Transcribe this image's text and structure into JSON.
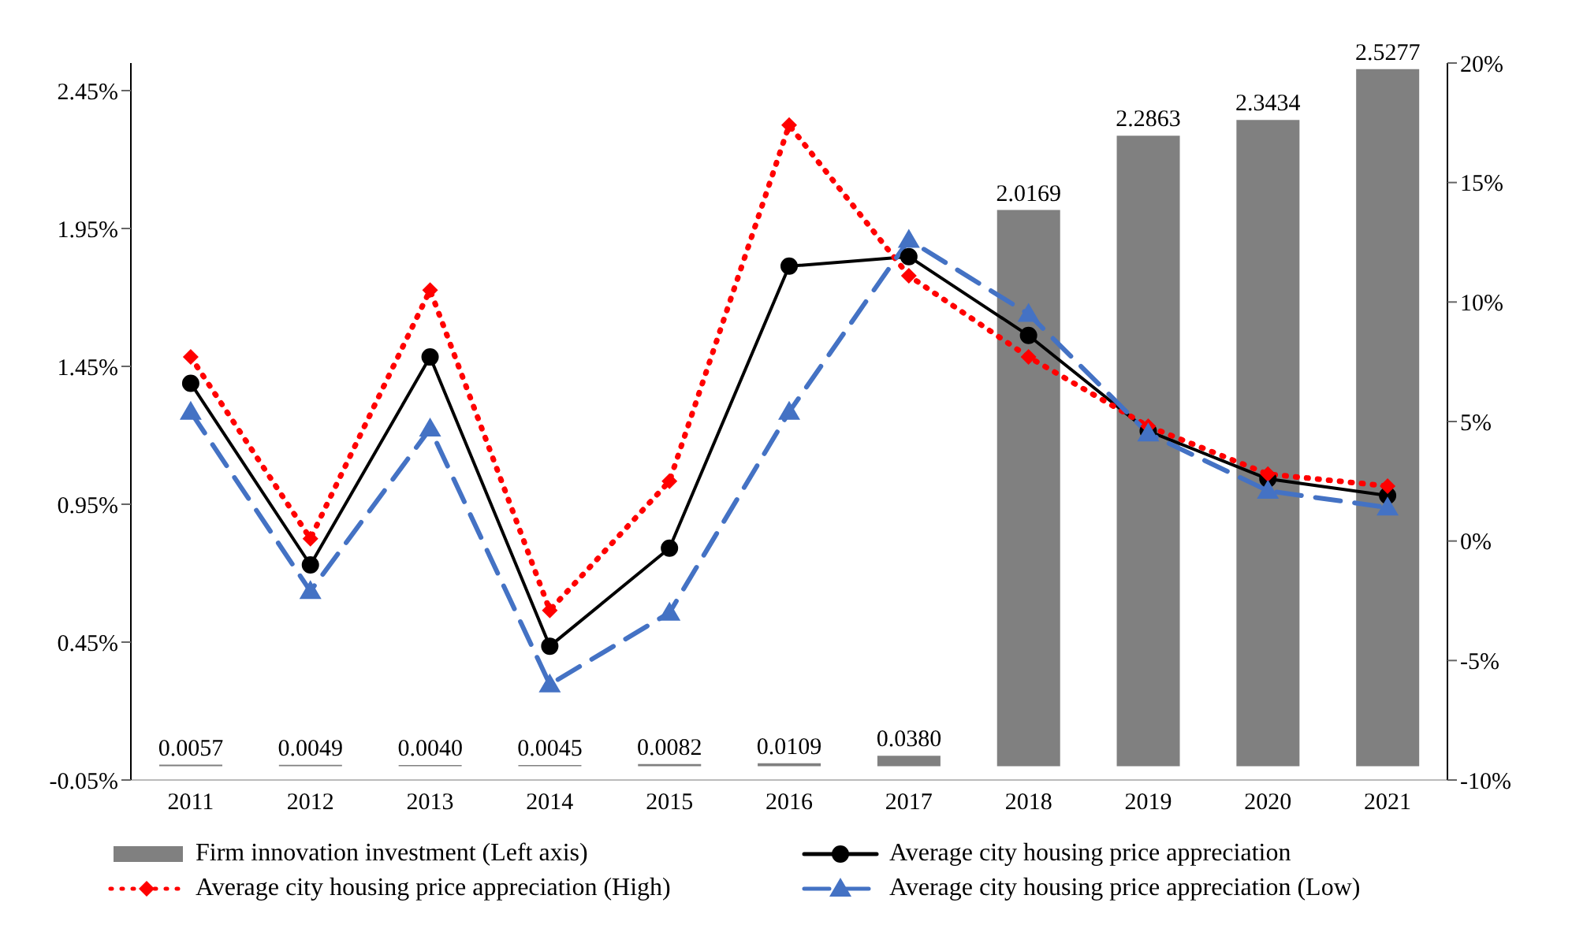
{
  "chart_data": {
    "type": "bar",
    "categories": [
      "2011",
      "2012",
      "2013",
      "2014",
      "2015",
      "2016",
      "2017",
      "2018",
      "2019",
      "2020",
      "2021"
    ],
    "series": [
      {
        "name": "Firm innovation investment (Left axis)",
        "color": "#808080",
        "values": [
          0.0057,
          0.0049,
          0.004,
          0.0045,
          0.0082,
          0.0109,
          0.038,
          2.0169,
          2.2863,
          2.3434,
          2.5277
        ],
        "value_labels": [
          "0.0057",
          "0.0049",
          "0.0040",
          "0.0045",
          "0.0082",
          "0.0109",
          "0.0380",
          "2.0169",
          "2.2863",
          "2.3434",
          "2.5277"
        ]
      },
      {
        "name": "Average city housing price appreciation",
        "type": "line",
        "axis": "y2",
        "color": "#000000",
        "marker": "circle",
        "line_style": "solid",
        "values": [
          6.6,
          -1.0,
          7.7,
          -4.4,
          -0.3,
          11.5,
          11.9,
          8.6,
          4.6,
          2.6,
          1.9
        ]
      },
      {
        "name": "Average city housing price appreciation (High)",
        "type": "line",
        "axis": "y2",
        "color": "#ff0000",
        "marker": "diamond",
        "line_style": "dotted",
        "values": [
          7.7,
          0.1,
          10.5,
          -2.9,
          2.5,
          17.4,
          11.1,
          7.7,
          4.8,
          2.8,
          2.3
        ]
      },
      {
        "name": "Average city housing price appreciation (Low)",
        "type": "line",
        "axis": "y2",
        "color": "#4472c4",
        "marker": "triangle",
        "line_style": "dashed",
        "values": [
          5.4,
          -2.1,
          4.7,
          -6.0,
          -3.0,
          5.4,
          12.6,
          9.5,
          4.5,
          2.1,
          1.4
        ]
      }
    ],
    "ylim": [
      -0.05,
      2.55
    ],
    "yticks": [
      {
        "value": -0.05,
        "label": "-0.05%"
      },
      {
        "value": 0.45,
        "label": "0.45%"
      },
      {
        "value": 0.95,
        "label": "0.95%"
      },
      {
        "value": 1.45,
        "label": "1.45%"
      },
      {
        "value": 1.95,
        "label": "1.95%"
      },
      {
        "value": 2.45,
        "label": "2.45%"
      }
    ],
    "y2lim": [
      -10,
      20
    ],
    "y2ticks": [
      {
        "value": -10,
        "label": "-10%"
      },
      {
        "value": -5,
        "label": "-5%"
      },
      {
        "value": 0,
        "label": "0%"
      },
      {
        "value": 5,
        "label": "5%"
      },
      {
        "value": 10,
        "label": "10%"
      },
      {
        "value": 15,
        "label": "15%"
      },
      {
        "value": 20,
        "label": "20%"
      }
    ],
    "grid": false,
    "legend": "bottom"
  }
}
